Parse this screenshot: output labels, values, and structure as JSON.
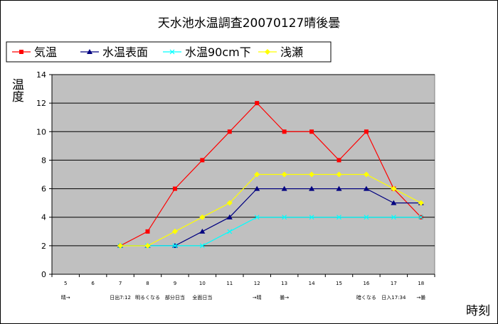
{
  "chart_data": {
    "type": "line",
    "title": "天水池水温調査20070127晴後曇",
    "xlabel": "時刻",
    "ylabel": "温度",
    "x": [
      "5",
      "6",
      "7",
      "8",
      "9",
      "10",
      "11",
      "12",
      "13",
      "14",
      "15",
      "16",
      "17",
      "18"
    ],
    "ylim": [
      0,
      14
    ],
    "yticks": [
      0,
      2,
      4,
      6,
      8,
      10,
      12,
      14
    ],
    "grid": true,
    "legend_position": "top",
    "plot_background": "#c0c0c0",
    "series": [
      {
        "name": "気温",
        "color": "#ff0000",
        "marker": "square",
        "values": [
          null,
          null,
          2,
          3,
          6,
          8,
          10,
          12,
          10,
          10,
          8,
          10,
          6,
          4
        ]
      },
      {
        "name": "水温表面",
        "color": "#000080",
        "marker": "triangle",
        "values": [
          null,
          null,
          2,
          2,
          2,
          3,
          4,
          6,
          6,
          6,
          6,
          6,
          5,
          5
        ]
      },
      {
        "name": "水温90cm下",
        "color": "#00ffff",
        "marker": "x",
        "values": [
          null,
          null,
          2,
          2,
          2,
          2,
          3,
          4,
          4,
          4,
          4,
          4,
          4,
          4
        ]
      },
      {
        "name": "浅瀬",
        "color": "#ffff00",
        "marker": "diamond",
        "values": [
          null,
          null,
          2,
          2,
          3,
          4,
          5,
          7,
          7,
          7,
          7,
          7,
          6,
          5
        ]
      }
    ],
    "annotations": [
      {
        "x": "5",
        "text": "晴→"
      },
      {
        "x": "7",
        "text": "日出7:12"
      },
      {
        "x": "8",
        "text": "明るくなる"
      },
      {
        "x": "9",
        "text": "部分日当"
      },
      {
        "x": "10",
        "text": "全面日当"
      },
      {
        "x": "12",
        "text": "→晴"
      },
      {
        "x": "13",
        "text": "曇→"
      },
      {
        "x": "16",
        "text": "暗くなる"
      },
      {
        "x": "17",
        "text": "日入17:34"
      },
      {
        "x": "18",
        "text": "→曇"
      }
    ]
  }
}
